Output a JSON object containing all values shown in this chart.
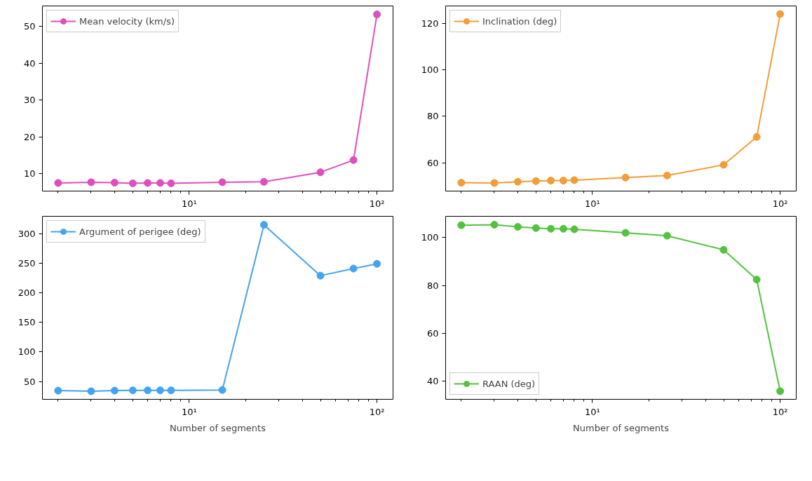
{
  "chart_data": [
    {
      "type": "line",
      "x": [
        2,
        3,
        4,
        5,
        6,
        7,
        8,
        15,
        25,
        50,
        75,
        100
      ],
      "series": [
        {
          "name": "Mean velocity (km/s)",
          "color": "#dd4fbf",
          "values": [
            7.5,
            7.7,
            7.6,
            7.4,
            7.5,
            7.5,
            7.4,
            7.7,
            7.8,
            10.4,
            13.7,
            53.2
          ]
        }
      ],
      "log": "x",
      "xlim": [
        1.65,
        121.8
      ],
      "ylim": [
        5.3,
        55.5
      ],
      "xticks": [
        {
          "value": 2,
          "label": null
        },
        {
          "value": 3,
          "label": null
        },
        {
          "value": 4,
          "label": null
        },
        {
          "value": 5,
          "label": null
        },
        {
          "value": 6,
          "label": null
        },
        {
          "value": 7,
          "label": null
        },
        {
          "value": 8,
          "label": null
        },
        {
          "value": 9,
          "label": null
        },
        {
          "value": 10,
          "label": "10¹"
        },
        {
          "value": 20,
          "label": null
        },
        {
          "value": 30,
          "label": null
        },
        {
          "value": 40,
          "label": null
        },
        {
          "value": 50,
          "label": null
        },
        {
          "value": 60,
          "label": null
        },
        {
          "value": 70,
          "label": null
        },
        {
          "value": 80,
          "label": null
        },
        {
          "value": 90,
          "label": null
        },
        {
          "value": 100,
          "label": "10²"
        }
      ],
      "yticks": [
        10,
        20,
        30,
        40,
        50
      ],
      "legend": "top left",
      "marker": "circle",
      "grid": false
    },
    {
      "type": "line",
      "x": [
        2,
        3,
        4,
        5,
        6,
        7,
        8,
        15,
        25,
        50,
        75,
        100
      ],
      "series": [
        {
          "name": "Inclination (deg)",
          "color": "#f29d38",
          "values": [
            51.4,
            51.3,
            51.8,
            52.1,
            52.3,
            52.3,
            52.5,
            53.6,
            54.5,
            59.1,
            71.1,
            124.0
          ]
        }
      ],
      "log": "x",
      "xlim": [
        1.65,
        121.8
      ],
      "ylim": [
        47.8,
        127.5
      ],
      "xticks": [
        {
          "value": 2,
          "label": null
        },
        {
          "value": 3,
          "label": null
        },
        {
          "value": 4,
          "label": null
        },
        {
          "value": 5,
          "label": null
        },
        {
          "value": 6,
          "label": null
        },
        {
          "value": 7,
          "label": null
        },
        {
          "value": 8,
          "label": null
        },
        {
          "value": 9,
          "label": null
        },
        {
          "value": 10,
          "label": "10¹"
        },
        {
          "value": 20,
          "label": null
        },
        {
          "value": 30,
          "label": null
        },
        {
          "value": 40,
          "label": null
        },
        {
          "value": 50,
          "label": null
        },
        {
          "value": 60,
          "label": null
        },
        {
          "value": 70,
          "label": null
        },
        {
          "value": 80,
          "label": null
        },
        {
          "value": 90,
          "label": null
        },
        {
          "value": 100,
          "label": "10²"
        }
      ],
      "yticks": [
        60,
        80,
        100,
        120
      ],
      "legend": "top left",
      "marker": "circle",
      "grid": false
    },
    {
      "type": "line",
      "x": [
        2,
        3,
        4,
        5,
        6,
        7,
        8,
        15,
        25,
        50,
        75,
        100
      ],
      "xlabel": "Number of segments",
      "series": [
        {
          "name": "Argument of perigee (deg)",
          "color": "#45a3f0",
          "values": [
            34.5,
            33.5,
            34.5,
            35,
            35,
            35,
            35,
            35.5,
            315,
            229,
            241,
            249
          ]
        }
      ],
      "log": "x",
      "xlim": [
        1.65,
        121.8
      ],
      "ylim": [
        19.8,
        329.4
      ],
      "xticks": [
        {
          "value": 2,
          "label": null
        },
        {
          "value": 3,
          "label": null
        },
        {
          "value": 4,
          "label": null
        },
        {
          "value": 5,
          "label": null
        },
        {
          "value": 6,
          "label": null
        },
        {
          "value": 7,
          "label": null
        },
        {
          "value": 8,
          "label": null
        },
        {
          "value": 9,
          "label": null
        },
        {
          "value": 10,
          "label": "10¹"
        },
        {
          "value": 20,
          "label": null
        },
        {
          "value": 30,
          "label": null
        },
        {
          "value": 40,
          "label": null
        },
        {
          "value": 50,
          "label": null
        },
        {
          "value": 60,
          "label": null
        },
        {
          "value": 70,
          "label": null
        },
        {
          "value": 80,
          "label": null
        },
        {
          "value": 90,
          "label": null
        },
        {
          "value": 100,
          "label": "10²"
        }
      ],
      "yticks": [
        50,
        100,
        150,
        200,
        250,
        300
      ],
      "legend": "top left",
      "marker": "circle",
      "grid": false
    },
    {
      "type": "line",
      "x": [
        2,
        3,
        4,
        5,
        6,
        7,
        8,
        15,
        25,
        50,
        75,
        100
      ],
      "xlabel": "Number of segments",
      "series": [
        {
          "name": "RAAN (deg)",
          "color": "#53c23f",
          "values": [
            105.2,
            105.4,
            104.5,
            104.0,
            103.7,
            103.7,
            103.5,
            102.0,
            100.8,
            94.9,
            82.5,
            35.9
          ]
        }
      ],
      "log": "x",
      "xlim": [
        1.65,
        121.8
      ],
      "ylim": [
        32.5,
        108.9
      ],
      "xticks": [
        {
          "value": 2,
          "label": null
        },
        {
          "value": 3,
          "label": null
        },
        {
          "value": 4,
          "label": null
        },
        {
          "value": 5,
          "label": null
        },
        {
          "value": 6,
          "label": null
        },
        {
          "value": 7,
          "label": null
        },
        {
          "value": 8,
          "label": null
        },
        {
          "value": 9,
          "label": null
        },
        {
          "value": 10,
          "label": "10¹"
        },
        {
          "value": 20,
          "label": null
        },
        {
          "value": 30,
          "label": null
        },
        {
          "value": 40,
          "label": null
        },
        {
          "value": 50,
          "label": null
        },
        {
          "value": 60,
          "label": null
        },
        {
          "value": 70,
          "label": null
        },
        {
          "value": 80,
          "label": null
        },
        {
          "value": 90,
          "label": null
        },
        {
          "value": 100,
          "label": "10²"
        }
      ],
      "yticks": [
        40,
        60,
        80,
        100
      ],
      "legend": "bottom left",
      "marker": "circle",
      "grid": false
    }
  ]
}
